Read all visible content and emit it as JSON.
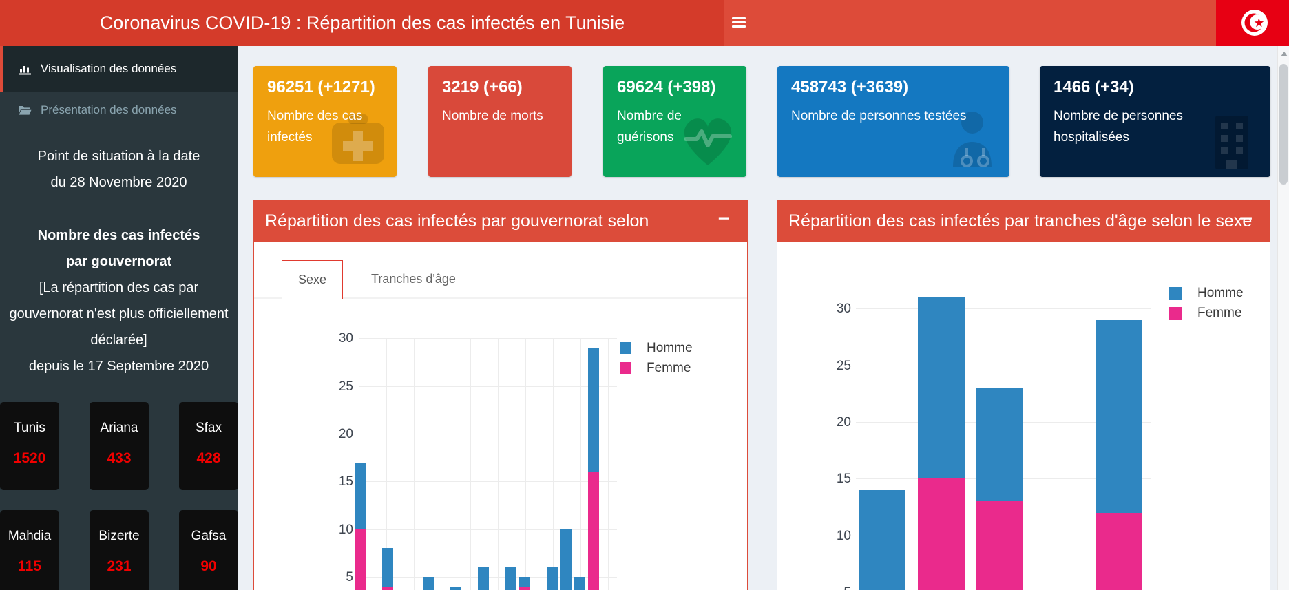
{
  "header": {
    "title": "Coronavirus COVID-19 : Répartition des cas infectés en Tunisie"
  },
  "sidebar": {
    "menu": [
      {
        "label": "Visualisation des données",
        "icon": "bar-chart-icon",
        "active": true
      },
      {
        "label": "Présentation des données",
        "icon": "folder-open-icon",
        "active": false
      }
    ],
    "situation_line1": "Point de situation à la date",
    "situation_line2": "du 28 Novembre 2020",
    "cases_line1": "Nombre des cas infectés",
    "cases_line2": "par gouvernorat",
    "note": "[La répartition des cas par gouvernorat n'est plus officiellement déclarée]",
    "note2": "depuis le 17 Septembre 2020",
    "governorates": [
      {
        "name": "Tunis",
        "value": "1520"
      },
      {
        "name": "Ariana",
        "value": "433"
      },
      {
        "name": "Sfax",
        "value": "428"
      },
      {
        "name": "Mahdia",
        "value": "115"
      },
      {
        "name": "Bizerte",
        "value": "231"
      },
      {
        "name": "Gafsa",
        "value": "90"
      }
    ]
  },
  "stat_cards": [
    {
      "value": "96251 (+1271)",
      "label": "Nombre des cas infectés",
      "color": "#efa00e",
      "icon": "medkit-icon"
    },
    {
      "value": "3219 (+66)",
      "label": "Nombre de morts",
      "color": "#d9493a",
      "icon": ""
    },
    {
      "value": "69624 (+398)",
      "label": "Nombre de guérisons",
      "color": "#09a45a",
      "icon": "heartbeat-icon"
    },
    {
      "value": "458743 (+3639)",
      "label": "Nombre de personnes testées",
      "color": "#1478c1",
      "icon": "doctor-icon"
    },
    {
      "value": "1466 (+34)",
      "label": "Nombre de personnes hospitalisées",
      "color": "#03203f",
      "icon": "hospital-icon"
    }
  ],
  "panels": {
    "left": {
      "title": "Répartition des cas infectés par gouvernorat selon",
      "collapse_label": "−",
      "tabs": [
        {
          "label": "Sexe",
          "active": true
        },
        {
          "label": "Tranches d'âge",
          "active": false
        }
      ]
    },
    "right": {
      "title": "Répartition des cas infectés par tranches d'âge selon le sexe",
      "collapse_label": "−"
    }
  },
  "colors": {
    "homme": "#2f86c0",
    "femme": "#ea2a8c",
    "accent_red": "#dd4b39",
    "flag_red": "#e70013",
    "governorate_value_red": "#f10000"
  },
  "chart_data": [
    {
      "id": "cas-par-gouvernorat-sexe",
      "type": "bar",
      "stacked": true,
      "title": "Répartition des cas infectés par gouvernorat selon",
      "legend": [
        "Homme",
        "Femme"
      ],
      "legend_position": "top-right",
      "yticks": [
        30,
        25,
        20,
        15,
        10,
        5
      ],
      "ylim_visible": [
        3.6,
        32
      ],
      "grid": "horizontal+vertical",
      "x_axis_labels_visible": false,
      "note": "bottom of plot cropped by viewport; gouvernorat category labels not visible",
      "series": [
        {
          "name": "Homme",
          "color": "#2f86c0",
          "values": [
            7,
            4,
            5,
            4,
            6,
            6,
            1,
            6,
            10,
            5,
            13
          ]
        },
        {
          "name": "Femme",
          "color": "#ea2a8c",
          "values": [
            10,
            4,
            0,
            0,
            0,
            0,
            4,
            0,
            0,
            0,
            16
          ]
        }
      ],
      "totals": [
        17,
        8,
        5,
        4,
        6,
        6,
        5,
        6,
        10,
        5,
        29
      ]
    },
    {
      "id": "cas-par-tranche-age-sexe",
      "type": "bar",
      "stacked": true,
      "title": "Répartition des cas infectés par tranches d'âge selon le sexe",
      "legend": [
        "Homme",
        "Femme"
      ],
      "legend_position": "top-right",
      "yticks": [
        30,
        25,
        20,
        15,
        10,
        5
      ],
      "ylim_visible": [
        5.2,
        32
      ],
      "grid": "horizontal",
      "x_axis_labels_visible": false,
      "note": "bottom of plot cropped by viewport; age-group category labels not visible",
      "series": [
        {
          "name": "Homme",
          "color": "#2f86c0",
          "values": [
            14,
            16,
            10,
            17
          ]
        },
        {
          "name": "Femme",
          "color": "#ea2a8c",
          "values": [
            0,
            15,
            13,
            12
          ]
        }
      ],
      "totals": [
        14,
        31,
        23,
        29
      ]
    }
  ]
}
